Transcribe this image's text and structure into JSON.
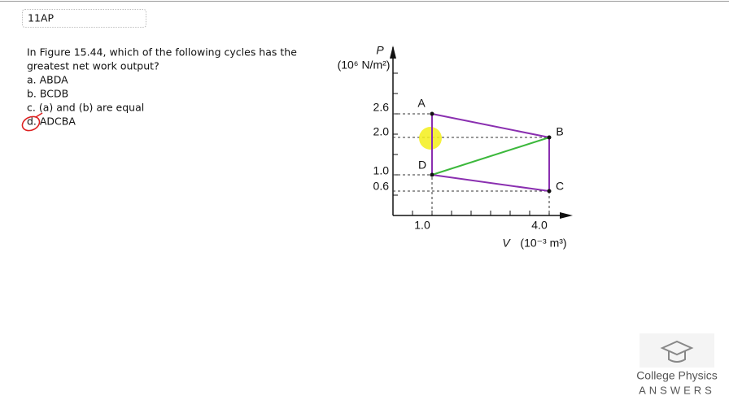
{
  "header": {
    "label": "11AP"
  },
  "question": {
    "lines": [
      "In Figure 15.44, which of the following cycles has the",
      "greatest net work output?"
    ],
    "options": [
      "a. ABDA",
      "b. BCDB",
      "c. (a) and (b) are equal",
      "d. ADCBA"
    ]
  },
  "figure": {
    "y_symbol": "P",
    "y_unit": "(10⁶ N/m²)",
    "y_ticks": [
      "2.6",
      "2.0",
      "1.0",
      "0.6"
    ],
    "x_ticks": [
      "1.0",
      "4.0"
    ],
    "x_symbol": "V",
    "x_unit": "(10⁻³ m³)",
    "points": [
      "A",
      "B",
      "C",
      "D"
    ]
  },
  "logo": {
    "title": "College Physics",
    "subtitle": "ANSWERS"
  }
}
